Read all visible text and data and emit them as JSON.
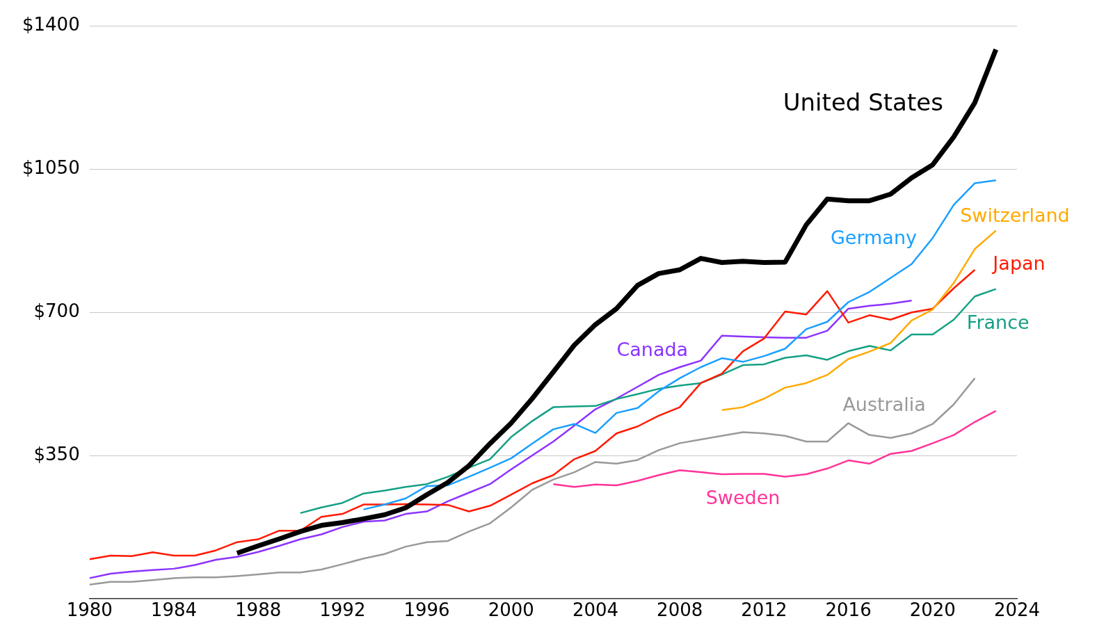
{
  "chart_data": {
    "type": "line",
    "xlim": [
      1980,
      2024
    ],
    "xticks": [
      1980,
      1984,
      1988,
      1992,
      1996,
      2000,
      2004,
      2008,
      2012,
      2016,
      2020,
      2024
    ],
    "ylim": [
      0,
      1400
    ],
    "yticks": [
      {
        "value": 0,
        "label": null
      },
      {
        "value": 350,
        "label": "$350"
      },
      {
        "value": 700,
        "label": "$700"
      },
      {
        "value": 1050,
        "label": "$1050"
      },
      {
        "value": 1400,
        "label": "$1400"
      }
    ],
    "grid": "y",
    "legend": false,
    "marker": "none",
    "line_style": "solid",
    "series": [
      {
        "name": "United States",
        "color": "#000000",
        "x": [
          1987,
          1988,
          1989,
          1990,
          1991,
          1992,
          1993,
          1994,
          1995,
          1996,
          1997,
          1998,
          1999,
          2000,
          2001,
          2002,
          2003,
          2004,
          2005,
          2006,
          2007,
          2008,
          2009,
          2010,
          2011,
          2012,
          2013,
          2014,
          2015,
          2016,
          2017,
          2018,
          2019,
          2020,
          2021,
          2022,
          2023
        ],
        "values": [
          111,
          129,
          146,
          164,
          179,
          186,
          195,
          205,
          222,
          254,
          284,
          325,
          379,
          429,
          489,
          554,
          620,
          670,
          709,
          766,
          795,
          804,
          832,
          822,
          825,
          822,
          823,
          914,
          977,
          973,
          973,
          989,
          1029,
          1061,
          1129,
          1213,
          1343
        ]
      },
      {
        "name": "Germany",
        "color": "#1a9fff",
        "x": [
          1993,
          1994,
          1995,
          1996,
          1997,
          1998,
          1999,
          2000,
          2001,
          2002,
          2003,
          2004,
          2005,
          2006,
          2007,
          2008,
          2009,
          2010,
          2011,
          2012,
          2013,
          2014,
          2015,
          2016,
          2017,
          2018,
          2019,
          2020,
          2021,
          2022,
          2023
        ],
        "values": [
          218,
          230,
          245,
          275,
          277,
          298,
          320,
          343,
          379,
          414,
          427,
          405,
          454,
          466,
          507,
          539,
          566,
          588,
          579,
          593,
          611,
          659,
          677,
          725,
          750,
          784,
          818,
          882,
          963,
          1016,
          1023
        ]
      },
      {
        "name": "Switzerland",
        "color": "#ffaa00",
        "x": [
          2010,
          2011,
          2012,
          2013,
          2014,
          2015,
          2016,
          2017,
          2018,
          2019,
          2020,
          2021,
          2022,
          2023
        ],
        "values": [
          461,
          468,
          489,
          516,
          527,
          547,
          586,
          604,
          625,
          680,
          707,
          772,
          855,
          900
        ]
      },
      {
        "name": "Japan",
        "color": "#ff1a00",
        "x": [
          1980,
          1981,
          1982,
          1983,
          1984,
          1985,
          1986,
          1987,
          1988,
          1989,
          1990,
          1991,
          1992,
          1993,
          1994,
          1995,
          1996,
          1997,
          1998,
          1999,
          2000,
          2001,
          2002,
          2003,
          2004,
          2005,
          2006,
          2007,
          2008,
          2009,
          2010,
          2011,
          2012,
          2013,
          2014,
          2015,
          2016,
          2017,
          2018,
          2019,
          2020,
          2021,
          2022
        ],
        "values": [
          96,
          105,
          104,
          113,
          105,
          105,
          118,
          138,
          145,
          166,
          166,
          200,
          207,
          230,
          230,
          231,
          230,
          229,
          213,
          227,
          254,
          282,
          302,
          341,
          361,
          404,
          421,
          447,
          468,
          527,
          550,
          605,
          636,
          702,
          695,
          752,
          675,
          693,
          682,
          700,
          709,
          759,
          804
        ]
      },
      {
        "name": "France",
        "color": "#14a085",
        "x": [
          1990,
          1991,
          1992,
          1993,
          1994,
          1995,
          1996,
          1997,
          1998,
          1999,
          2000,
          2001,
          2002,
          2003,
          2004,
          2005,
          2006,
          2007,
          2008,
          2009,
          2010,
          2011,
          2012,
          2013,
          2014,
          2015,
          2016,
          2017,
          2018,
          2019,
          2020,
          2021,
          2022,
          2023
        ],
        "values": [
          209,
          223,
          234,
          257,
          264,
          273,
          280,
          298,
          320,
          341,
          395,
          434,
          468,
          470,
          471,
          488,
          500,
          513,
          521,
          527,
          548,
          571,
          573,
          589,
          595,
          584,
          605,
          618,
          607,
          646,
          646,
          682,
          739,
          757
        ]
      },
      {
        "name": "Canada",
        "color": "#8c33ff",
        "x": [
          1980,
          1981,
          1982,
          1983,
          1984,
          1985,
          1986,
          1987,
          1988,
          1989,
          1990,
          1991,
          1992,
          1993,
          1994,
          1995,
          1996,
          1997,
          1998,
          1999,
          2000,
          2001,
          2002,
          2003,
          2004,
          2005,
          2006,
          2007,
          2008,
          2009,
          2010,
          2011,
          2012,
          2013,
          2014,
          2015,
          2016,
          2017,
          2018,
          2019
        ],
        "values": [
          50,
          61,
          66,
          70,
          73,
          82,
          95,
          102,
          114,
          129,
          145,
          157,
          175,
          188,
          191,
          207,
          213,
          238,
          259,
          280,
          316,
          350,
          384,
          423,
          463,
          489,
          518,
          547,
          566,
          582,
          643,
          641,
          639,
          638,
          638,
          655,
          709,
          716,
          721,
          729
        ]
      },
      {
        "name": "Australia",
        "color": "#999999",
        "x": [
          1980,
          1981,
          1982,
          1983,
          1984,
          1985,
          1986,
          1987,
          1988,
          1989,
          1990,
          1991,
          1992,
          1993,
          1994,
          1995,
          1996,
          1997,
          1998,
          1999,
          2000,
          2001,
          2002,
          2003,
          2004,
          2005,
          2006,
          2007,
          2008,
          2009,
          2010,
          2011,
          2012,
          2013,
          2014,
          2015,
          2016,
          2017,
          2018,
          2019,
          2020,
          2021,
          2022
        ],
        "values": [
          34,
          41,
          41,
          45,
          50,
          52,
          52,
          55,
          59,
          64,
          64,
          71,
          84,
          98,
          109,
          127,
          138,
          141,
          164,
          184,
          223,
          266,
          291,
          309,
          334,
          330,
          339,
          363,
          380,
          389,
          398,
          407,
          404,
          398,
          384,
          384,
          429,
          400,
          393,
          404,
          427,
          475,
          539
        ]
      },
      {
        "name": "Sweden",
        "color": "#ff3399",
        "x": [
          2002,
          2003,
          2004,
          2005,
          2006,
          2007,
          2008,
          2009,
          2010,
          2011,
          2012,
          2013,
          2014,
          2015,
          2016,
          2017,
          2018,
          2019,
          2020,
          2021,
          2022,
          2023
        ],
        "values": [
          280,
          273,
          279,
          277,
          288,
          302,
          314,
          309,
          304,
          305,
          305,
          298,
          304,
          318,
          338,
          330,
          354,
          361,
          380,
          400,
          432,
          459
        ]
      }
    ]
  }
}
